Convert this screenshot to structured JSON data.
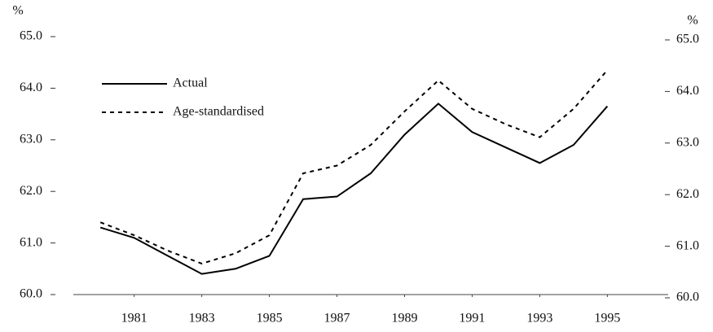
{
  "chart_data": {
    "type": "line",
    "y_label": "%",
    "y2_label": "%",
    "x": [
      1980,
      1981,
      1982,
      1983,
      1984,
      1985,
      1986,
      1987,
      1988,
      1989,
      1990,
      1991,
      1992,
      1993,
      1994,
      1995
    ],
    "xlim": [
      1979.2,
      1996.8
    ],
    "xticks": [
      1981,
      1983,
      1985,
      1987,
      1989,
      1991,
      1993,
      1995
    ],
    "ylim": [
      60,
      65
    ],
    "yticks": [
      {
        "value": 60,
        "label": "60.0"
      },
      {
        "value": 61,
        "label": "61.0"
      },
      {
        "value": 62,
        "label": "62.0"
      },
      {
        "value": 63,
        "label": "63.0"
      },
      {
        "value": 64,
        "label": "64.0"
      },
      {
        "value": 65,
        "label": "65.0"
      }
    ],
    "y2lim": [
      60,
      65
    ],
    "y2ticks": [
      {
        "value": 60,
        "label": "60.0"
      },
      {
        "value": 61,
        "label": "61.0"
      },
      {
        "value": 62,
        "label": "62.0"
      },
      {
        "value": 63,
        "label": "63.0"
      },
      {
        "value": 64,
        "label": "64.0"
      },
      {
        "value": 65,
        "label": "65.0"
      }
    ],
    "legend": "upper left",
    "series": [
      {
        "name": "Actual",
        "color": "#000000",
        "dash": "solid",
        "values": [
          61.3,
          61.1,
          60.75,
          60.4,
          60.5,
          60.75,
          61.85,
          61.9,
          62.35,
          63.1,
          63.7,
          63.15,
          62.85,
          62.55,
          62.9,
          63.65
        ]
      },
      {
        "name": "Age-standardised",
        "color": "#000000",
        "dash": "dotted",
        "values": [
          61.4,
          61.15,
          60.85,
          60.6,
          60.8,
          61.15,
          62.35,
          62.5,
          62.9,
          63.55,
          64.15,
          63.6,
          63.3,
          63.05,
          63.6,
          64.35
        ]
      }
    ]
  }
}
